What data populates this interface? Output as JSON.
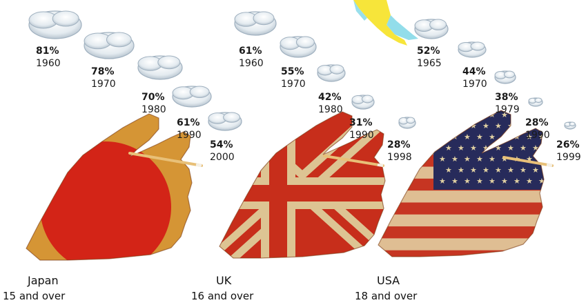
{
  "chart_data": [
    {
      "type": "scatter",
      "title": "",
      "country": "Japan",
      "age_group": "15 and over",
      "flag": "japan",
      "x": [
        "1960",
        "1970",
        "1980",
        "1990",
        "2000"
      ],
      "values": [
        81,
        78,
        70,
        61,
        54
      ],
      "labels": [
        "81%",
        "78%",
        "70%",
        "61%",
        "54%"
      ]
    },
    {
      "type": "scatter",
      "title": "",
      "country": "UK",
      "age_group": "16 and over",
      "flag": "uk",
      "x": [
        "1960",
        "1970",
        "1980",
        "1990",
        "1998"
      ],
      "values": [
        61,
        55,
        42,
        31,
        28
      ],
      "labels": [
        "61%",
        "55%",
        "42%",
        "31%",
        "28%"
      ]
    },
    {
      "type": "scatter",
      "title": "",
      "country": "USA",
      "age_group": "18 and over",
      "flag": "usa",
      "x": [
        "1965",
        "1970",
        "1979",
        "1990",
        "1999"
      ],
      "values": [
        52,
        44,
        38,
        28,
        26
      ],
      "labels": [
        "52%",
        "44%",
        "38%",
        "28%",
        "26%"
      ]
    }
  ],
  "colors": {
    "japan_base": "#e8a23a",
    "japan_disc": "#e5281a",
    "uk_red": "#d8321e",
    "uk_white": "#f0d5a0",
    "uk_blue": "#2c3a72",
    "usa_red": "#d73a25",
    "usa_white": "#f2cfa0",
    "usa_blue": "#2b2f63",
    "cigarette": "#e8c078",
    "smoke": "#c6d2dc",
    "map_yellow": "#f7e53a",
    "map_cyan": "#7fd7e6"
  }
}
